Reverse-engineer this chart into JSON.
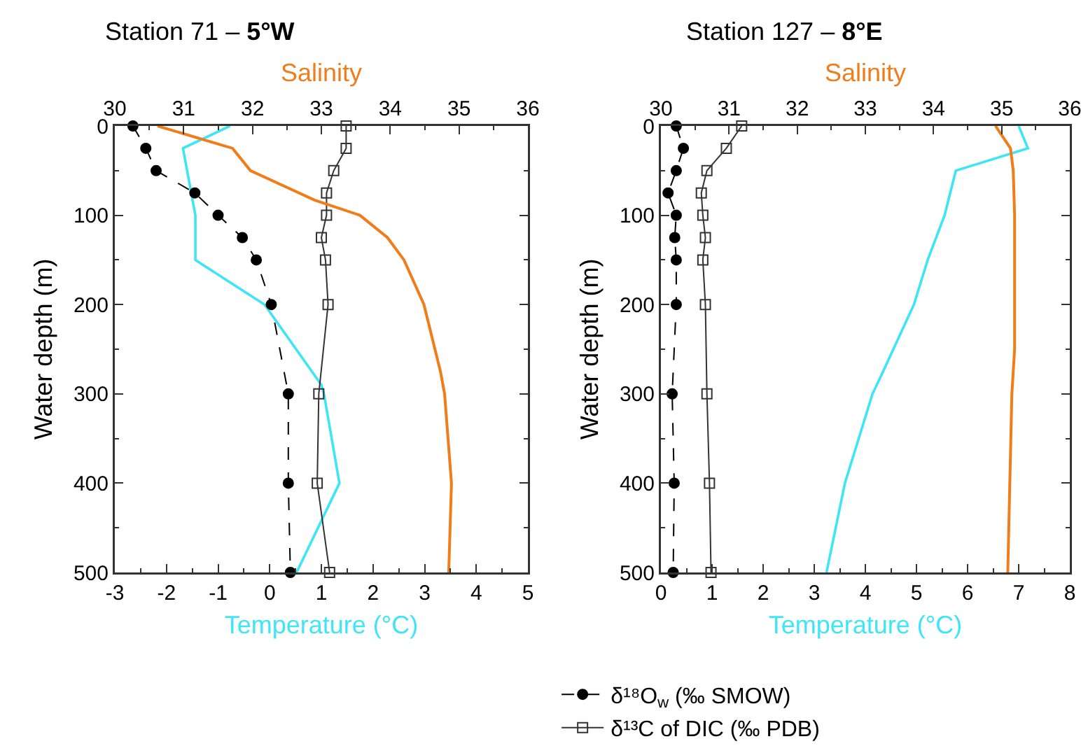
{
  "chart_data": [
    {
      "type": "line",
      "title": "Station 71 – 5°W",
      "xlabel": "Temperature (°C)",
      "x2label": "Salinity",
      "ylabel": "Water depth (m)",
      "xlim": [
        -3,
        5
      ],
      "xticks": [
        -3,
        -2,
        -1,
        0,
        1,
        2,
        3,
        4,
        5
      ],
      "x2lim": [
        30,
        36
      ],
      "x2ticks": [
        30,
        31,
        32,
        33,
        34,
        35,
        36
      ],
      "ylim": [
        500,
        0
      ],
      "yticks": [
        0,
        100,
        200,
        300,
        400,
        500
      ],
      "grid": false,
      "legend": false,
      "series": [
        {
          "color": "#f07d1a",
          "axis": "x2",
          "marker": "none",
          "line_style": "solid",
          "x": [
            30.62,
            31.71,
            31.97,
            32.9,
            33.56,
            33.96,
            34.2,
            34.49,
            34.73,
            34.79,
            34.89,
            34.85
          ],
          "values": [
            0,
            25,
            50,
            83,
            100,
            125,
            150,
            200,
            275,
            300,
            400,
            500
          ]
        },
        {
          "color": "#3ee6f5",
          "marker": "none",
          "line_style": "solid",
          "x": [
            -0.77,
            -1.68,
            -1.44,
            -1.44,
            -0.1,
            1.0,
            1.05,
            1.35,
            0.52
          ],
          "values": [
            0,
            25,
            100,
            150,
            200,
            290,
            300,
            400,
            500
          ]
        },
        {
          "color": "#000000",
          "marker": "circle",
          "line_style": "dashed",
          "x": [
            -2.65,
            -2.4,
            -2.2,
            -1.45,
            -1.0,
            -0.53,
            -0.26,
            0.03,
            0.36,
            0.36,
            0.4
          ],
          "values": [
            0,
            25,
            50,
            75,
            100,
            125,
            150,
            200,
            300,
            400,
            500
          ]
        },
        {
          "color": "#333333",
          "marker": "square",
          "line_style": "solid",
          "x": [
            1.48,
            1.48,
            1.24,
            1.1,
            1.1,
            1.0,
            1.08,
            1.13,
            0.95,
            0.92,
            1.16
          ],
          "values": [
            0,
            25,
            50,
            75,
            100,
            125,
            150,
            200,
            300,
            400,
            500
          ]
        }
      ]
    },
    {
      "type": "line",
      "title": "Station 127 – 8°E",
      "xlabel": "Temperature (°C)",
      "x2label": "Salinity",
      "ylabel": "Water depth (m)",
      "xlim": [
        0,
        8
      ],
      "xticks": [
        0,
        1,
        2,
        3,
        4,
        5,
        6,
        7,
        8
      ],
      "x2lim": [
        30,
        36
      ],
      "x2ticks": [
        30,
        31,
        32,
        33,
        34,
        35,
        36
      ],
      "ylim": [
        500,
        0
      ],
      "yticks": [
        0,
        100,
        200,
        300,
        400,
        500
      ],
      "grid": false,
      "legend": "bottom",
      "series": [
        {
          "color": "#f07d1a",
          "axis": "x2",
          "marker": "none",
          "line_style": "solid",
          "x": [
            34.91,
            35.13,
            35.17,
            35.19,
            35.19,
            35.19,
            35.15,
            35.12,
            35.09
          ],
          "values": [
            0,
            25,
            50,
            100,
            200,
            250,
            300,
            400,
            500
          ]
        },
        {
          "color": "#3ee6f5",
          "marker": "none",
          "line_style": "solid",
          "x": [
            7.0,
            7.18,
            5.77,
            5.55,
            5.22,
            4.95,
            4.33,
            4.14,
            3.6,
            3.24
          ],
          "values": [
            0,
            25,
            50,
            100,
            150,
            200,
            277,
            300,
            400,
            500
          ]
        },
        {
          "name": "δ¹⁸O$_{w}$ (‰ SMOW)",
          "color": "#000000",
          "marker": "circle",
          "line_style": "dashed",
          "x": [
            0.3,
            0.44,
            0.3,
            0.14,
            0.3,
            0.27,
            0.3,
            0.3,
            0.22,
            0.26,
            0.24
          ],
          "values": [
            0,
            25,
            50,
            75,
            100,
            125,
            150,
            200,
            300,
            400,
            500
          ]
        },
        {
          "name": "δ¹³C of DIC (‰ PDB)",
          "color": "#333333",
          "marker": "square",
          "line_style": "solid",
          "x": [
            1.58,
            1.28,
            0.9,
            0.79,
            0.82,
            0.87,
            0.82,
            0.87,
            0.9,
            0.95,
            0.98
          ],
          "values": [
            0,
            25,
            50,
            75,
            100,
            125,
            150,
            200,
            300,
            400,
            500
          ]
        }
      ]
    }
  ]
}
